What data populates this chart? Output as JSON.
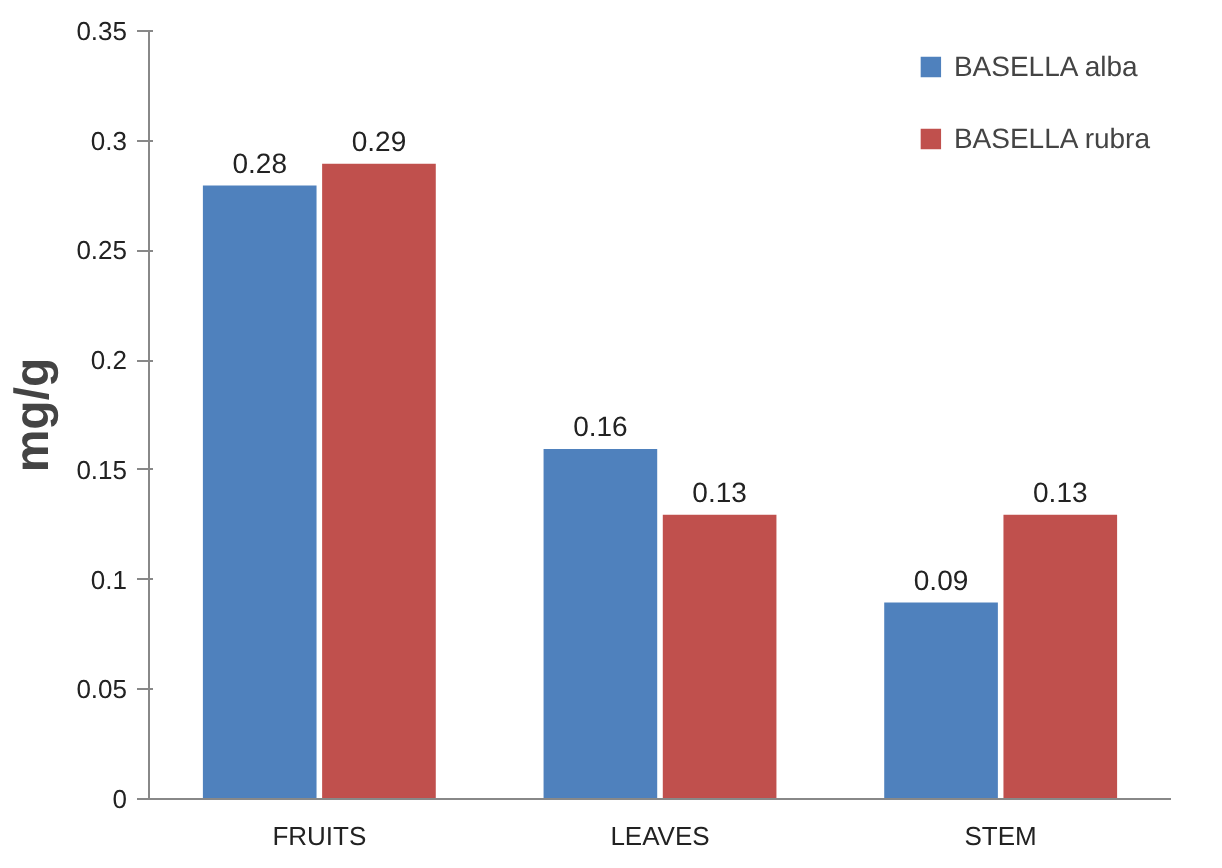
{
  "chart_data": {
    "type": "bar",
    "ylabel": "mg/g",
    "categories": [
      "FRUITS",
      "LEAVES",
      "STEM"
    ],
    "series": [
      {
        "name": "BASELLA alba",
        "color": "#4f81bd",
        "values": [
          0.28,
          0.16,
          0.09
        ]
      },
      {
        "name": "BASELLA rubra",
        "color": "#c0504d",
        "values": [
          0.29,
          0.13,
          0.13
        ]
      }
    ],
    "ylim": [
      0,
      0.35
    ],
    "yticks": [
      0,
      0.05,
      0.1,
      0.15,
      0.2,
      0.25,
      0.3,
      0.35
    ],
    "grid": false,
    "legend": "top right",
    "data_labels": true
  }
}
